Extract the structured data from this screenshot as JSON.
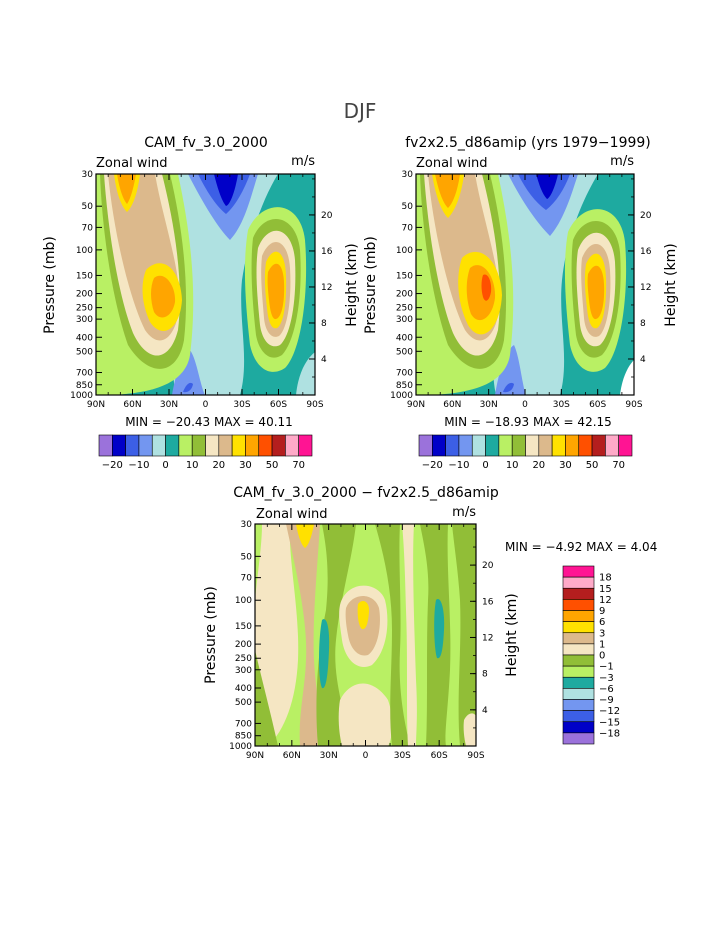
{
  "figure": {
    "title": "DJF",
    "panels": [
      {
        "title": "CAM_fv_3.0_2000",
        "field_label": "Zonal wind",
        "units": "m/s",
        "stats": "MIN = −20.43   MAX =  40.11",
        "ylabel_left": "Pressure (mb)",
        "ylabel_right": "Height (km)"
      },
      {
        "title": "fv2x2.5_d86amip (yrs 1979−1999)",
        "field_label": "Zonal wind",
        "units": "m/s",
        "stats": "MIN = −18.93   MAX =  42.15",
        "ylabel_left": "Pressure (mb)",
        "ylabel_right": "Height (km)"
      },
      {
        "title": "CAM_fv_3.0_2000  −  fv2x2.5_d86amip",
        "field_label": "Zonal wind",
        "units": "m/s",
        "stats": "MIN =   −4.92   MAX =    4.04",
        "ylabel_left": "Pressure (mb)",
        "ylabel_right": "Height (km)"
      }
    ],
    "pressure_ticks": [
      "30",
      "50",
      "70",
      "100",
      "150",
      "200",
      "250",
      "300",
      "400",
      "500",
      "700",
      "850",
      "1000"
    ],
    "height_ticks": [
      "20",
      "16",
      "12",
      "8",
      "4"
    ],
    "lat_ticks": [
      "90N",
      "60N",
      "30N",
      "0",
      "30S",
      "60S",
      "90S"
    ],
    "colorbar_labels": [
      "−20",
      "−10",
      "0",
      "10",
      "20",
      "30",
      "50",
      "70"
    ],
    "diff_colorbar_labels": [
      "18",
      "15",
      "12",
      "9",
      "6",
      "3",
      "1",
      "0",
      "−1",
      "−3",
      "−6",
      "−9",
      "−12",
      "−15",
      "−18"
    ],
    "colors": {
      "c_purple": "#9B72DB",
      "c_navy": "#0000C8",
      "c_blue": "#3C5FE6",
      "c_ltblue": "#7396F0",
      "c_paleblue": "#AFE1E1",
      "c_teal": "#1EAAA0",
      "c_ltgreen": "#B9F064",
      "c_green": "#91BE37",
      "c_cream": "#F5E6C3",
      "c_tan": "#DCB98C",
      "c_yellow": "#FFE100",
      "c_orange": "#FFA500",
      "c_redorange": "#FF5000",
      "c_darkred": "#B41E1E",
      "c_pink": "#FFAAC8",
      "c_magenta": "#FF1493"
    }
  },
  "chart_data": [
    {
      "type": "heatmap",
      "title": "CAM_fv_3.0_2000",
      "subtitle": "Zonal wind",
      "units": "m/s",
      "xlabel": "",
      "ylabel": "Pressure (mb)",
      "ylabel_right": "Height (km)",
      "x_ticks": [
        "90N",
        "60N",
        "30N",
        "0",
        "30S",
        "60S",
        "90S"
      ],
      "y_ticks": [
        30,
        50,
        70,
        100,
        150,
        200,
        250,
        300,
        400,
        500,
        700,
        850,
        1000
      ],
      "y_scale": "log",
      "contour_levels": [
        -25,
        -20,
        -15,
        -10,
        -5,
        0,
        5,
        10,
        15,
        20,
        25,
        30,
        40,
        50,
        60,
        70
      ],
      "min": -20.43,
      "max": 40.11,
      "features": [
        {
          "lat": -30,
          "p": 200,
          "peak": 34
        },
        {
          "lat": 45,
          "p": 50,
          "peak": 24
        },
        {
          "lat": 55,
          "p": 200,
          "peak": 40
        }
      ]
    },
    {
      "type": "heatmap",
      "title": "fv2x2.5_d86amip (yrs 1979−1999)",
      "subtitle": "Zonal wind",
      "units": "m/s",
      "xlabel": "",
      "ylabel": "Pressure (mb)",
      "ylabel_right": "Height (km)",
      "x_ticks": [
        "90N",
        "60N",
        "30N",
        "0",
        "30S",
        "60S",
        "90S"
      ],
      "y_ticks": [
        30,
        50,
        70,
        100,
        150,
        200,
        250,
        300,
        400,
        500,
        700,
        850,
        1000
      ],
      "y_scale": "log",
      "contour_levels": [
        -25,
        -20,
        -15,
        -10,
        -5,
        0,
        5,
        10,
        15,
        20,
        25,
        30,
        40,
        50,
        60,
        70
      ],
      "min": -18.93,
      "max": 42.15,
      "features": [
        {
          "lat": -30,
          "p": 200,
          "peak": 33
        },
        {
          "lat": 45,
          "p": 50,
          "peak": 26
        },
        {
          "lat": 55,
          "p": 200,
          "peak": 42
        }
      ]
    },
    {
      "type": "heatmap",
      "title": "CAM_fv_3.0_2000  −  fv2x2.5_d86amip",
      "subtitle": "Zonal wind",
      "units": "m/s",
      "xlabel": "",
      "ylabel": "Pressure (mb)",
      "ylabel_right": "Height (km)",
      "x_ticks": [
        "90N",
        "60N",
        "30N",
        "0",
        "30S",
        "60S",
        "90S"
      ],
      "y_ticks": [
        30,
        50,
        70,
        100,
        150,
        200,
        250,
        300,
        400,
        500,
        700,
        850,
        1000
      ],
      "y_scale": "log",
      "contour_levels": [
        -18,
        -15,
        -12,
        -9,
        -6,
        -3,
        -1,
        0,
        1,
        3,
        6,
        9,
        12,
        15,
        18
      ],
      "min": -4.92,
      "max": 4.04
    }
  ]
}
